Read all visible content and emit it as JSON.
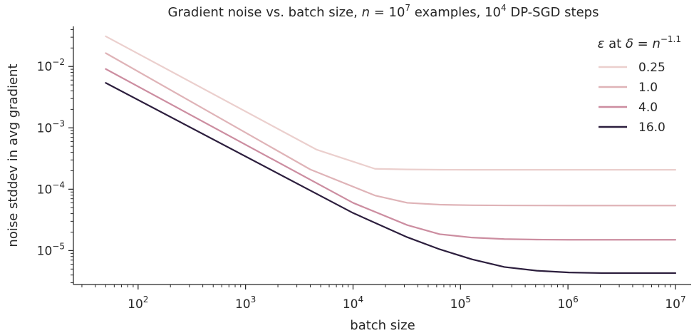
{
  "chart_data": {
    "type": "line",
    "title": "Gradient noise vs. batch size, n = 10^7 examples, 10^4 DP-SGD steps",
    "title_parts": {
      "pre": "Gradient noise vs. batch size, ",
      "n": "n",
      "eq": " = 10",
      "n_exp": "7",
      "mid": " examples, 10",
      "steps_exp": "4",
      "post": " DP-SGD steps"
    },
    "xlabel": "batch size",
    "ylabel": "noise stddev in avg gradient",
    "x_scale": "log",
    "y_scale": "log",
    "xlim": [
      25,
      14000000
    ],
    "ylim": [
      2.8e-06,
      0.045
    ],
    "x_ticks": [
      {
        "value": 100,
        "base": "10",
        "exp": "2"
      },
      {
        "value": 1000,
        "base": "10",
        "exp": "3"
      },
      {
        "value": 10000,
        "base": "10",
        "exp": "4"
      },
      {
        "value": 100000,
        "base": "10",
        "exp": "5"
      },
      {
        "value": 1000000,
        "base": "10",
        "exp": "6"
      },
      {
        "value": 10000000,
        "base": "10",
        "exp": "7"
      }
    ],
    "y_ticks": [
      {
        "value": 0.01,
        "base": "10",
        "exp": "−2"
      },
      {
        "value": 0.001,
        "base": "10",
        "exp": "−3"
      },
      {
        "value": 0.0001,
        "base": "10",
        "exp": "−4"
      },
      {
        "value": 1e-05,
        "base": "10",
        "exp": "−5"
      }
    ],
    "grid": false,
    "legend": {
      "placement": "top-right",
      "title": "ε at δ = n^−1.1",
      "title_parts": {
        "eps": "ε",
        "at": " at ",
        "delta": "δ",
        "eq": " = ",
        "n": "n",
        "exp": "−1.1"
      }
    },
    "series": [
      {
        "name": "0.25",
        "color": "#ebcfcd",
        "x": [
          50,
          4600,
          16000,
          32000,
          64000,
          128000,
          256000,
          512000,
          1024000,
          2048000,
          4096000,
          10000000
        ],
        "y": [
          0.031,
          0.00044,
          0.000215,
          0.00021,
          0.000208,
          0.000207,
          0.000207,
          0.000207,
          0.000207,
          0.000207,
          0.000207,
          0.000207
        ]
      },
      {
        "name": "1.0",
        "color": "#dfb3b7",
        "x": [
          50,
          4000,
          16000,
          32000,
          64000,
          128000,
          256000,
          512000,
          1024000,
          2048000,
          10000000
        ],
        "y": [
          0.0165,
          0.00021,
          7.9e-05,
          6e-05,
          5.6e-05,
          5.48e-05,
          5.45e-05,
          5.43e-05,
          5.42e-05,
          5.42e-05,
          5.42e-05
        ]
      },
      {
        "name": "4.0",
        "color": "#cc8da0",
        "x": [
          50,
          10000,
          32000,
          64000,
          128000,
          256000,
          512000,
          1024000,
          2048000,
          10000000
        ],
        "y": [
          0.0091,
          6e-05,
          2.6e-05,
          1.85e-05,
          1.63e-05,
          1.54e-05,
          1.51e-05,
          1.5e-05,
          1.5e-05,
          1.5e-05
        ]
      },
      {
        "name": "16.0",
        "color": "#2c1e3d",
        "x": [
          50,
          10000,
          32000,
          64000,
          128000,
          256000,
          512000,
          1024000,
          2048000,
          10000000
        ],
        "y": [
          0.0054,
          4.1e-05,
          1.65e-05,
          1.05e-05,
          7.2e-06,
          5.4e-06,
          4.7e-06,
          4.4e-06,
          4.3e-06,
          4.3e-06
        ]
      }
    ]
  }
}
